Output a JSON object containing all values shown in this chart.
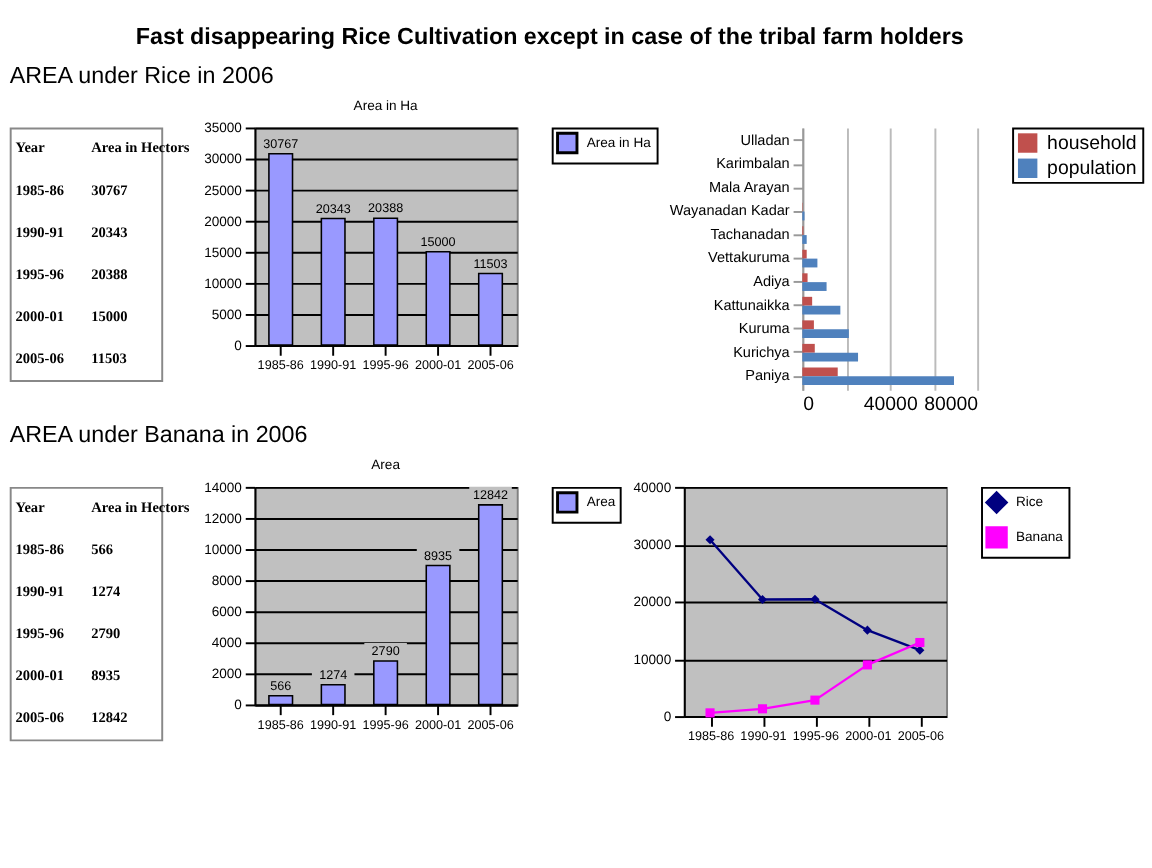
{
  "chart_data": [
    {
      "type": "other",
      "title": "Fast disappearing Rice Cultivation except in case of the tribal farm holders",
      "subtitle": "AREA under Rice in 2006",
      "annotations": [
        "Year",
        "Area in Hectors",
        "1985-86",
        "30767",
        "1990-91",
        "20343",
        "1995-96",
        "20388",
        "2000-01",
        "15000",
        "2005-06",
        "11503"
      ]
    },
    {
      "type": "bar",
      "title": "Area in Ha",
      "categories": [
        "1985-86",
        "1990-91",
        "1995-96",
        "2000-01",
        "2005-06"
      ],
      "series": [
        {
          "name": "Area in Ha",
          "color": "#9999ff",
          "values": [
            30767,
            20343,
            20388,
            15000,
            11503
          ]
        }
      ],
      "ylim": [
        0,
        35000
      ],
      "yticks": [
        0,
        5000,
        10000,
        15000,
        20000,
        25000,
        30000,
        35000
      ],
      "grid": "y",
      "legend": "right",
      "data_labels": true
    },
    {
      "type": "bar",
      "orientation": "horizontal",
      "categories": [
        "Ulladan",
        "Karimbalan",
        "Mala Arayan",
        "Wayanadan Kadar",
        "Tachanadan",
        "Vettakuruma",
        "Adiya",
        "Kattunaikka",
        "Kuruma",
        "Kurichya",
        "Paniya"
      ],
      "series": [
        {
          "name": "household",
          "color": "#c0504d",
          "values": [
            0,
            0,
            0,
            200,
            500,
            2000,
            2400,
            4500,
            5300,
            5700,
            16200
          ]
        },
        {
          "name": "population",
          "color": "#4f81bd",
          "values": [
            0,
            0,
            0,
            1000,
            2000,
            6900,
            11100,
            17400,
            21300,
            25500,
            69400
          ]
        }
      ],
      "xlim": [
        0,
        80000
      ],
      "xticks": [
        0,
        {
          "value": 20000,
          "label": null
        },
        40000,
        {
          "value": 60000,
          "label": null
        },
        80000
      ],
      "grid": "x",
      "legend": "right"
    },
    {
      "type": "other",
      "subtitle": "AREA under Banana in 2006",
      "annotations": [
        "Year",
        "Area in Hectors",
        "1985-86",
        "566",
        "1990-91",
        "1274",
        "1995-96",
        "2790",
        "2000-01",
        "8935",
        "2005-06",
        "12842"
      ]
    },
    {
      "type": "bar",
      "title": "Area",
      "categories": [
        "1985-86",
        "1990-91",
        "1995-96",
        "2000-01",
        "2005-06"
      ],
      "series": [
        {
          "name": "Area",
          "color": "#9999ff",
          "values": [
            566,
            1274,
            2790,
            8935,
            12842
          ]
        }
      ],
      "ylim": [
        0,
        14000
      ],
      "yticks": [
        0,
        2000,
        4000,
        6000,
        8000,
        10000,
        12000,
        14000
      ],
      "grid": "y",
      "legend": "right",
      "data_labels": true
    },
    {
      "type": "line",
      "categories": [
        "1985-86",
        "1990-91",
        "1995-96",
        "2000-01",
        "2005-06"
      ],
      "series": [
        {
          "name": "Rice",
          "color": "#000080",
          "marker": "diamond",
          "values": [
            30767,
            20343,
            20388,
            15000,
            11503
          ]
        },
        {
          "name": "Banana",
          "color": "#ff00ff",
          "marker": "square",
          "values": [
            566,
            1274,
            2790,
            8935,
            12842
          ]
        }
      ],
      "ylim": [
        0,
        40000
      ],
      "yticks": [
        0,
        10000,
        20000,
        30000,
        40000
      ],
      "grid": "y",
      "legend": "right"
    }
  ]
}
